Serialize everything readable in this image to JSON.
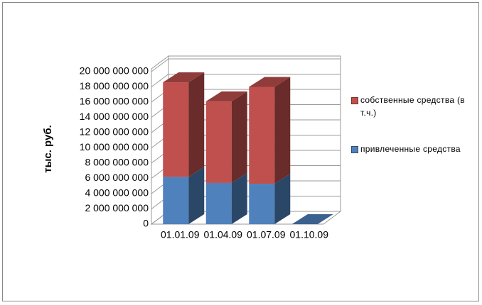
{
  "chart_data": {
    "type": "bar3d_stacked",
    "y_label": "тыс. руб.",
    "categories": [
      "01.01.09",
      "01.04.09",
      "01.07.09",
      "01.10.09"
    ],
    "series": [
      {
        "name": "привлеченные средства",
        "color": "#4f81bd",
        "values": [
          6200000000,
          5400000000,
          5300000000,
          0
        ]
      },
      {
        "name": "собственные средства (в т.ч.)",
        "color": "#c0504d",
        "values": [
          12400000000,
          10700000000,
          12700000000,
          0
        ]
      }
    ],
    "ylim": [
      0,
      20000000000
    ],
    "yticks": [
      {
        "value": 0,
        "label": "0"
      },
      {
        "value": 2000000000,
        "label": "2 000 000 000"
      },
      {
        "value": 4000000000,
        "label": "4 000 000 000"
      },
      {
        "value": 6000000000,
        "label": "6 000 000 000"
      },
      {
        "value": 8000000000,
        "label": "8 000 000 000"
      },
      {
        "value": 10000000000,
        "label": "10 000 000 000"
      },
      {
        "value": 12000000000,
        "label": "12 000 000 000"
      },
      {
        "value": 14000000000,
        "label": "14 000 000 000"
      },
      {
        "value": 16000000000,
        "label": "16 000 000 000"
      },
      {
        "value": 18000000000,
        "label": "18 000 000 000"
      },
      {
        "value": 20000000000,
        "label": "20 000 000 000"
      }
    ],
    "grid": true
  }
}
